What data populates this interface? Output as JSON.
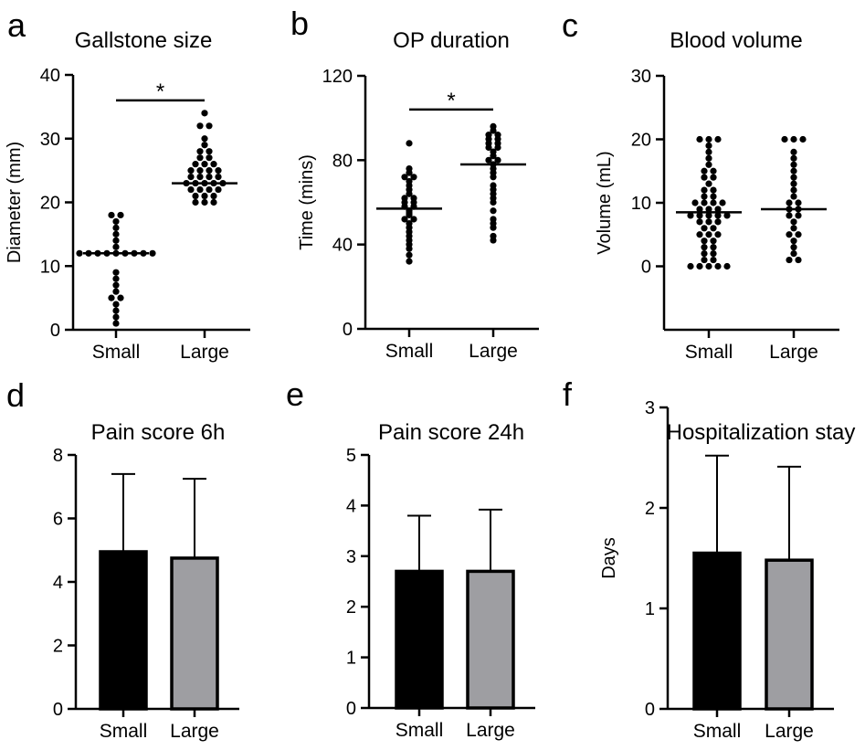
{
  "figure": {
    "panel_letters": [
      "a",
      "b",
      "c",
      "d",
      "e",
      "f"
    ]
  },
  "chart_data": [
    {
      "panel": "a",
      "type": "scatter",
      "title": "Gallstone size",
      "xlabel": "",
      "ylabel": "Diameter (mm)",
      "ylim": [
        0,
        40
      ],
      "yticks": [
        0,
        10,
        20,
        30,
        40
      ],
      "categories": [
        "Small",
        "Large"
      ],
      "series": [
        {
          "name": "Small",
          "values": [
            1,
            2,
            3,
            4,
            5,
            5,
            6,
            7,
            8,
            9,
            12,
            12,
            12,
            12,
            12,
            12,
            12,
            12,
            12,
            13,
            14,
            15,
            16,
            17,
            18,
            18
          ],
          "mean": 12
        },
        {
          "name": "Large",
          "values": [
            20,
            20,
            20,
            21,
            21,
            21,
            22,
            22,
            22,
            22,
            23,
            23,
            23,
            23,
            23,
            24,
            24,
            24,
            24,
            25,
            25,
            25,
            25,
            26,
            26,
            26,
            27,
            27,
            28,
            28,
            29,
            30,
            32,
            32,
            34
          ],
          "mean": 23
        }
      ],
      "significance": {
        "label": "*",
        "between": [
          "Small",
          "Large"
        ],
        "y": 36
      }
    },
    {
      "panel": "b",
      "type": "scatter",
      "title": "OP duration",
      "xlabel": "",
      "ylabel": "Time (mins)",
      "ylim": [
        0,
        120
      ],
      "yticks": [
        0,
        40,
        80,
        120
      ],
      "categories": [
        "Small",
        "Large"
      ],
      "series": [
        {
          "name": "Small",
          "values": [
            32,
            35,
            38,
            40,
            42,
            44,
            46,
            48,
            50,
            52,
            52,
            54,
            55,
            56,
            58,
            58,
            60,
            60,
            62,
            62,
            64,
            66,
            68,
            70,
            72,
            72,
            74,
            76,
            88
          ],
          "mean": 57
        },
        {
          "name": "Large",
          "values": [
            42,
            44,
            48,
            50,
            52,
            56,
            60,
            62,
            64,
            66,
            68,
            72,
            74,
            76,
            78,
            80,
            80,
            82,
            84,
            86,
            86,
            88,
            88,
            90,
            90,
            92,
            92,
            94,
            96
          ],
          "mean": 78
        },
        {
          "name": "",
          "values": []
        }
      ],
      "significance": {
        "label": "*",
        "between": [
          "Small",
          "Large"
        ],
        "y": 104
      }
    },
    {
      "panel": "c",
      "type": "scatter",
      "title": "Blood volume",
      "xlabel": "",
      "ylabel": "Volume (mL)",
      "ylim": [
        -10,
        30
      ],
      "yticks": [
        0,
        10,
        20,
        30
      ],
      "categories": [
        "Small",
        "Large"
      ],
      "series": [
        {
          "name": "Small",
          "values": [
            0,
            0,
            0,
            0,
            0,
            1,
            1,
            2,
            2,
            3,
            3,
            4,
            4,
            5,
            5,
            5,
            6,
            6,
            7,
            7,
            7,
            8,
            8,
            8,
            8,
            8,
            9,
            9,
            9,
            10,
            10,
            10,
            10,
            11,
            11,
            12,
            12,
            13,
            14,
            14,
            15,
            15,
            16,
            17,
            18,
            19,
            20,
            20,
            20
          ],
          "mean": 8.5
        },
        {
          "name": "Large",
          "values": [
            1,
            1,
            2,
            3,
            4,
            5,
            5,
            6,
            7,
            8,
            8,
            9,
            9,
            10,
            10,
            11,
            12,
            13,
            14,
            15,
            16,
            17,
            18,
            20,
            20,
            20
          ],
          "mean": 9
        }
      ]
    },
    {
      "panel": "d",
      "type": "bar",
      "title": "Pain score 6h",
      "xlabel": "",
      "ylabel": "",
      "ylim": [
        0,
        8
      ],
      "yticks": [
        0,
        2,
        4,
        6,
        8
      ],
      "categories": [
        "Small",
        "Large"
      ],
      "values": [
        4.95,
        4.75
      ],
      "errors": [
        2.45,
        2.5
      ],
      "colors": [
        "#000000",
        "#9e9ea2"
      ]
    },
    {
      "panel": "e",
      "type": "bar",
      "title": "Pain score 24h",
      "xlabel": "",
      "ylabel": "",
      "ylim": [
        0,
        5
      ],
      "yticks": [
        0,
        1,
        2,
        3,
        4,
        5
      ],
      "categories": [
        "Small",
        "Large"
      ],
      "values": [
        2.7,
        2.7
      ],
      "errors": [
        1.1,
        1.22
      ],
      "colors": [
        "#000000",
        "#9e9ea2"
      ]
    },
    {
      "panel": "f",
      "type": "bar",
      "title": "Hospitalization stay",
      "xlabel": "",
      "ylabel": "Days",
      "ylim": [
        0,
        3
      ],
      "yticks": [
        0,
        1,
        2,
        3
      ],
      "categories": [
        "Small",
        "Large"
      ],
      "values": [
        1.55,
        1.48
      ],
      "errors": [
        0.97,
        0.93
      ],
      "colors": [
        "#000000",
        "#9e9ea2"
      ]
    }
  ]
}
